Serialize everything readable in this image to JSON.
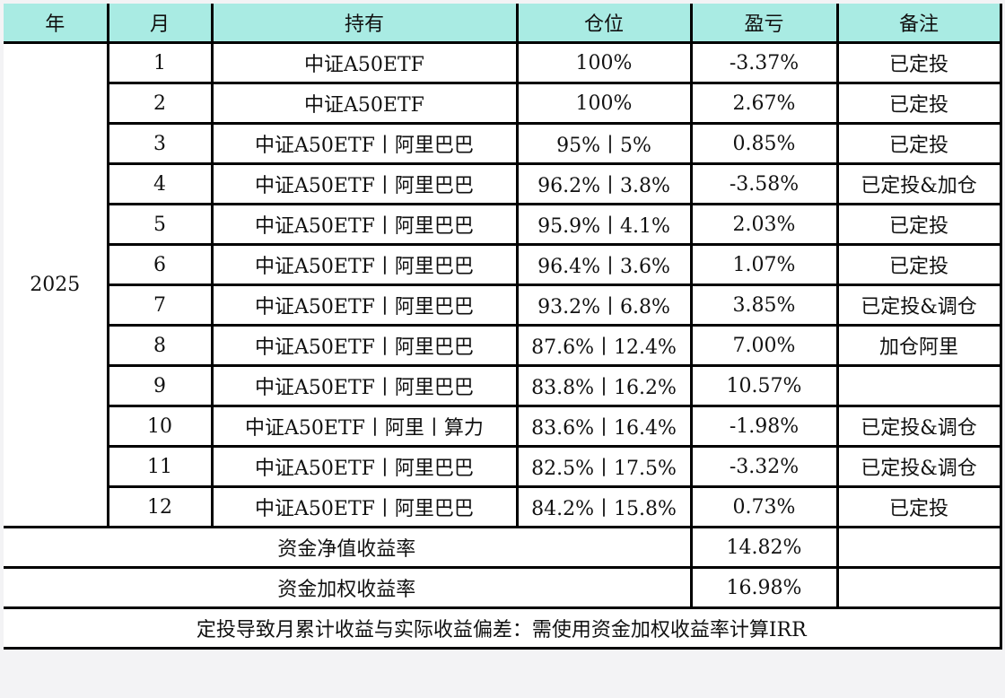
{
  "header_color": "#a9ebe3",
  "headers": [
    "年",
    "月",
    "持有",
    "仓位",
    "盈亏",
    "备注"
  ],
  "year": "2025",
  "rows": [
    {
      "month": "1",
      "holding": "中证A50ETF",
      "position": "100%",
      "pnl": "-3.37%",
      "note": "已定投"
    },
    {
      "month": "2",
      "holding": "中证A50ETF",
      "position": "100%",
      "pnl": "2.67%",
      "note": "已定投"
    },
    {
      "month": "3",
      "holding": "中证A50ETF丨阿里巴巴",
      "position": "95%丨5%",
      "pnl": "0.85%",
      "note": "已定投"
    },
    {
      "month": "4",
      "holding": "中证A50ETF丨阿里巴巴",
      "position": "96.2%丨3.8%",
      "pnl": "-3.58%",
      "note": "已定投&加仓"
    },
    {
      "month": "5",
      "holding": "中证A50ETF丨阿里巴巴",
      "position": "95.9%丨4.1%",
      "pnl": "2.03%",
      "note": "已定投"
    },
    {
      "month": "6",
      "holding": "中证A50ETF丨阿里巴巴",
      "position": "96.4%丨3.6%",
      "pnl": "1.07%",
      "note": "已定投"
    },
    {
      "month": "7",
      "holding": "中证A50ETF丨阿里巴巴",
      "position": "93.2%丨6.8%",
      "pnl": "3.85%",
      "note": "已定投&调仓"
    },
    {
      "month": "8",
      "holding": "中证A50ETF丨阿里巴巴",
      "position": "87.6%丨12.4%",
      "pnl": "7.00%",
      "note": "加仓阿里"
    },
    {
      "month": "9",
      "holding": "中证A50ETF丨阿里巴巴",
      "position": "83.8%丨16.2%",
      "pnl": "10.57%",
      "note": ""
    },
    {
      "month": "10",
      "holding": "中证A50ETF丨阿里丨算力",
      "position": "83.6%丨16.4%",
      "pnl": "-1.98%",
      "note": "已定投&调仓"
    },
    {
      "month": "11",
      "holding": "中证A50ETF丨阿里巴巴",
      "position": "82.5%丨17.5%",
      "pnl": "-3.32%",
      "note": "已定投&调仓"
    },
    {
      "month": "12",
      "holding": "中证A50ETF丨阿里巴巴",
      "position": "84.2%丨15.8%",
      "pnl": "0.73%",
      "note": "已定投"
    }
  ],
  "summary": [
    {
      "label": "资金净值收益率",
      "value": "14.82%",
      "note": ""
    },
    {
      "label": "资金加权收益率",
      "value": "16.98%",
      "note": ""
    }
  ],
  "footnote": "定投导致月累计收益与实际收益偏差：需使用资金加权收益率计算IRR"
}
